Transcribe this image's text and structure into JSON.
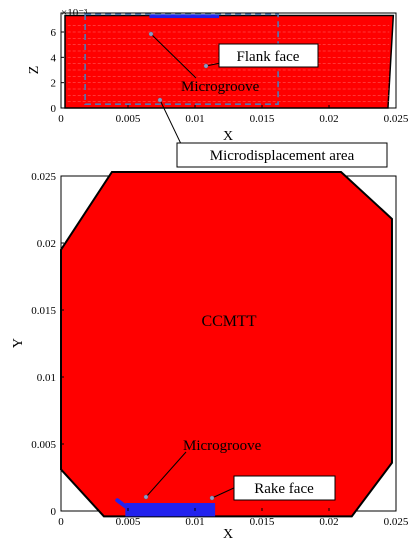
{
  "chart_data": [
    {
      "name": "flank-face-view",
      "type": "area",
      "xlabel": "X",
      "ylabel": "Z",
      "y_multiplier": "×10⁻³",
      "xlim": [
        0,
        0.025
      ],
      "ylim": [
        0,
        0.0075
      ],
      "xticks": [
        "0",
        "0.005",
        "0.01",
        "0.015",
        "0.02",
        "0.025"
      ],
      "yticks": [
        "0",
        "2",
        "4",
        "6"
      ],
      "grid": false,
      "regions": {
        "flank": {
          "x": [
            0.0003,
            0.0003,
            0.0248,
            0.0244
          ],
          "z": [
            0,
            0.0073,
            0.0073,
            0
          ],
          "color": "#ff0000"
        },
        "microgroove": {
          "x": [
            0.0066,
            0.0118
          ],
          "z": [
            0.0071,
            0.0074
          ],
          "color": "#2222ee"
        },
        "microdisplacement_area": {
          "x": [
            0.0018,
            0.0162
          ],
          "z": [
            0.0003,
            0.0074
          ]
        }
      },
      "annotations": [
        "Flank face",
        "Microgroove",
        "Microdisplacement area"
      ]
    },
    {
      "name": "rake-face-view",
      "type": "area",
      "xlabel": "X",
      "ylabel": "Y",
      "xlim": [
        0,
        0.025
      ],
      "ylim": [
        0,
        0.025
      ],
      "xticks": [
        "0",
        "0.005",
        "0.01",
        "0.015",
        "0.02",
        "0.025"
      ],
      "yticks": [
        "0",
        "0.005",
        "0.01",
        "0.015",
        "0.02",
        "0.025"
      ],
      "grid": false,
      "regions": {
        "rake_polygon": {
          "x": [
            0.0038,
            0.0209,
            0.0247,
            0.0247,
            0.0217,
            0.0032,
            0.0,
            0.0
          ],
          "y": [
            0.0253,
            0.0253,
            0.0218,
            0.0036,
            -0.0004,
            -0.0004,
            0.0031,
            0.0195
          ],
          "color": "#ff0000"
        },
        "microgroove": {
          "x": [
            0.0048,
            0.0115,
            0.0115,
            0.0048
          ],
          "y": [
            0.0006,
            0.0006,
            -0.0004,
            -0.0004
          ],
          "color": "#2222ee"
        }
      },
      "annotations": [
        "CCMTT",
        "Microgroove",
        "Rake face"
      ]
    }
  ],
  "labels": {
    "flank_face": "Flank face",
    "microgroove_top": "Microgroove",
    "microdisplacement_area": "Microdisplacement area",
    "ccmtt": "CCMTT",
    "microgroove_bottom": "Microgroove",
    "rake_face": "Rake face",
    "top_multiplier": "×10⁻³"
  },
  "colors": {
    "body": "#ff0000",
    "groove": "#2222ee",
    "outline": "#000000",
    "dashed": "#4a7ab8",
    "marker": "#8a9cc8"
  }
}
